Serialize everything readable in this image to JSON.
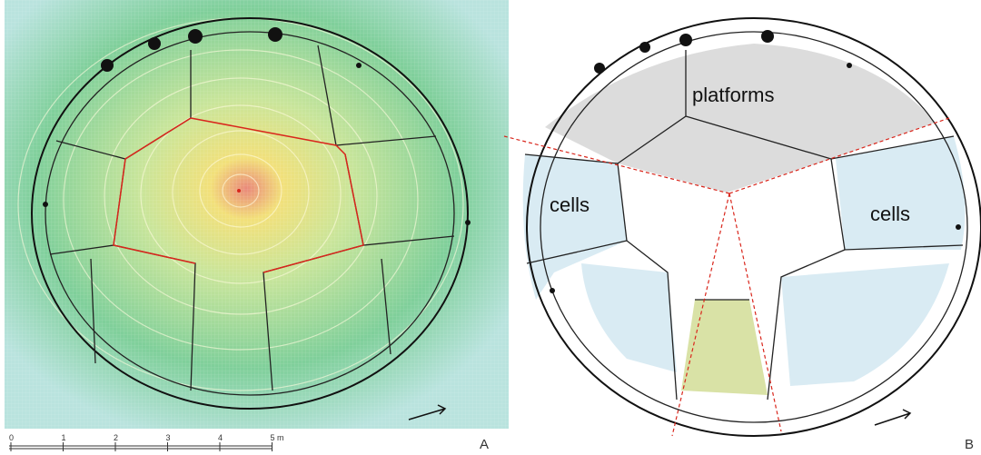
{
  "panels": [
    {
      "label": "A",
      "scale": {
        "ticks": [
          "0",
          "1",
          "2",
          "3",
          "4",
          "5 m"
        ]
      }
    },
    {
      "label": "B",
      "regions": [
        {
          "label": "platforms"
        },
        {
          "label": "cells"
        },
        {
          "label": "cells"
        }
      ]
    }
  ]
}
